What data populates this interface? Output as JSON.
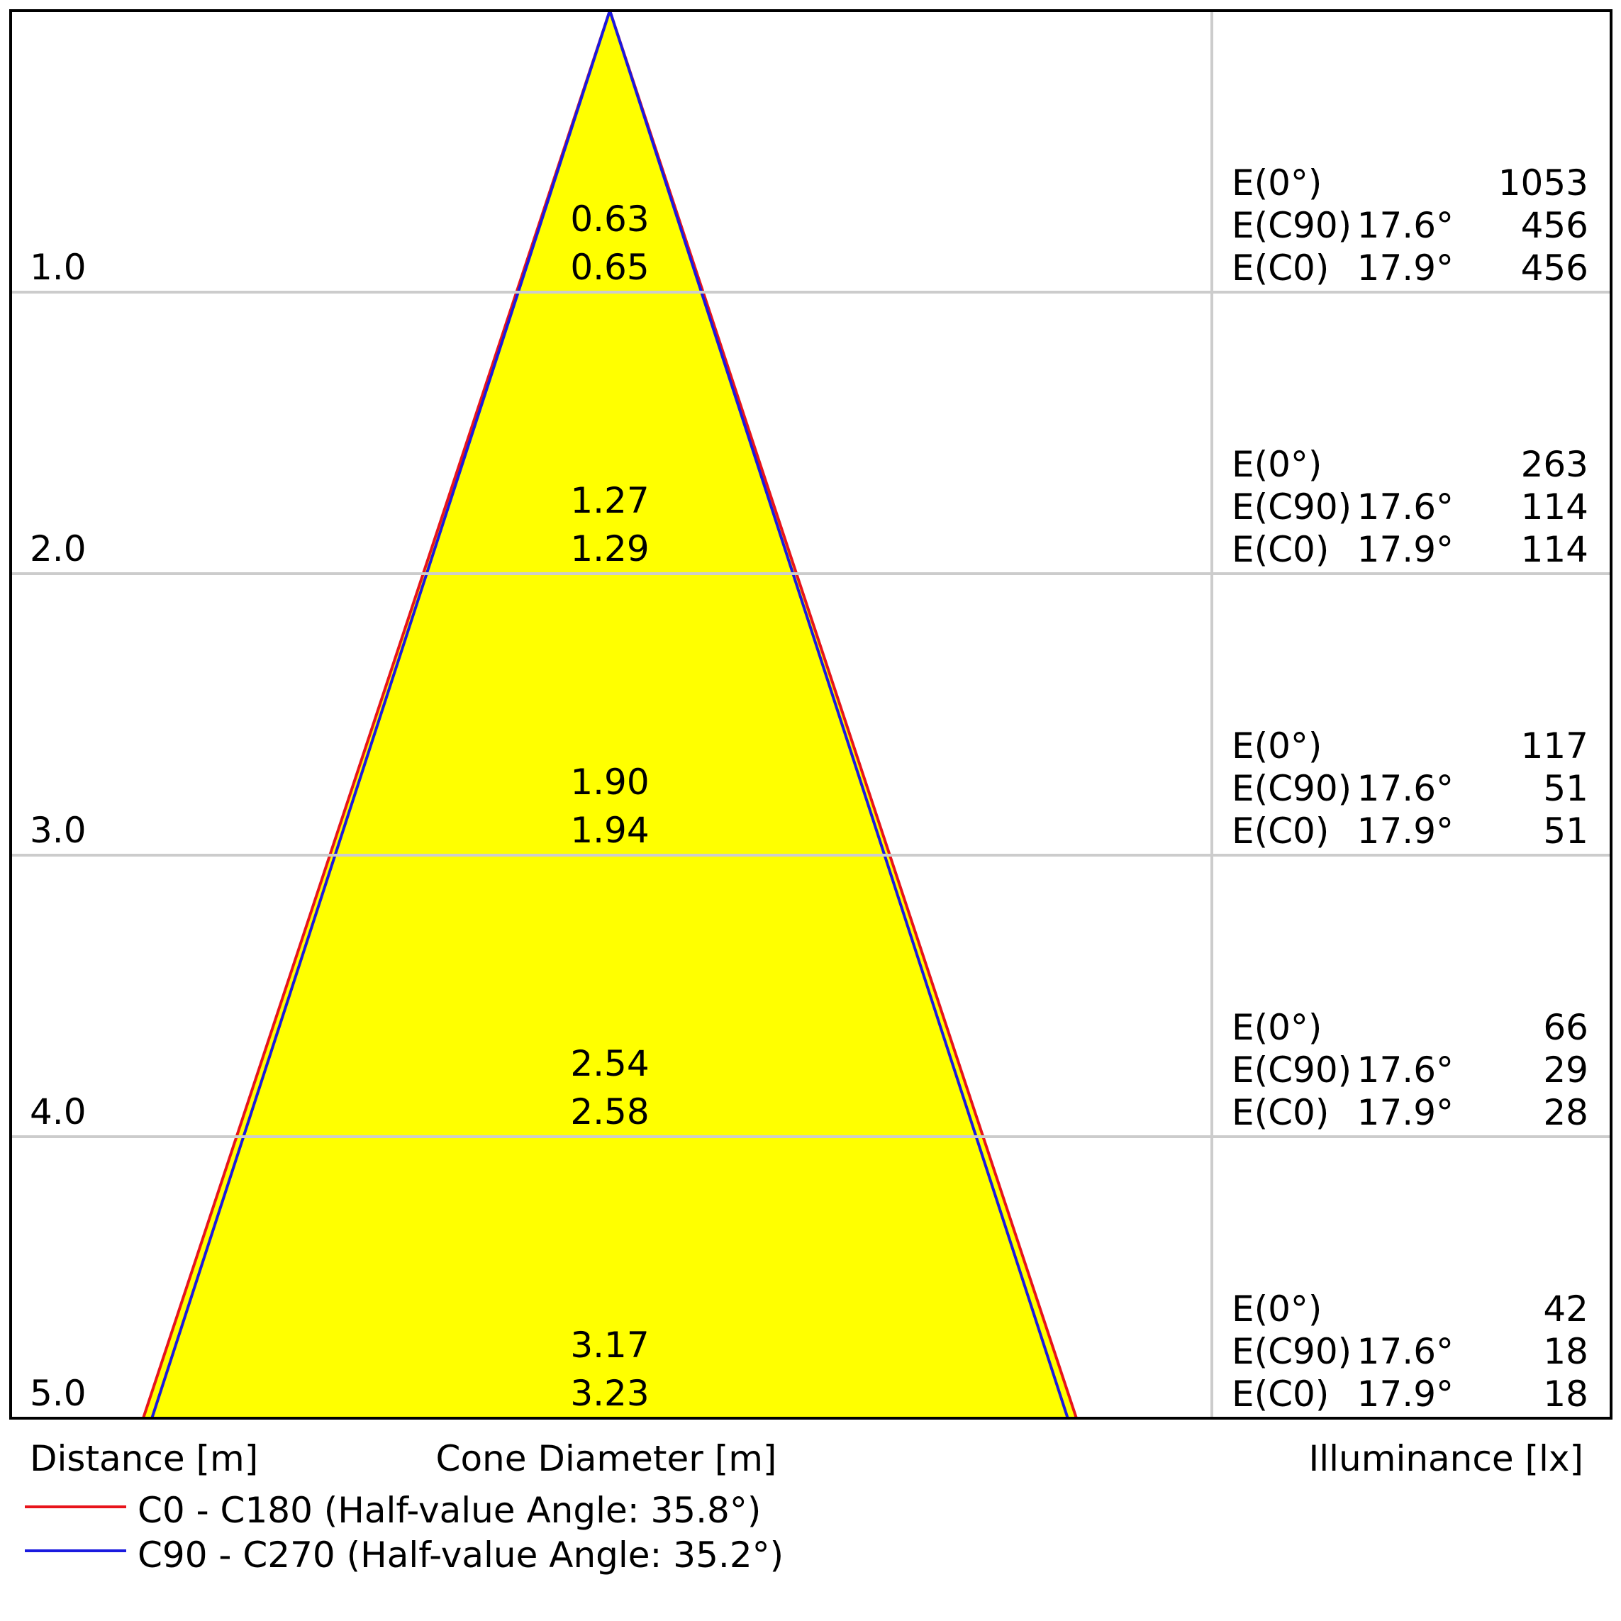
{
  "chart_data": {
    "type": "cone-diagram",
    "x_label": "Distance [m]",
    "middle_label": "Cone Diameter [m]",
    "right_label": "Illuminance [lx]",
    "rows": [
      {
        "distance": "1.0",
        "diameter_c90": "0.63",
        "diameter_c0": "0.65",
        "e0_label": "E(0°)",
        "e0": "1053",
        "ec90_label": "E(C90)",
        "ec90_angle": "17.6°",
        "ec90": "456",
        "ec0_label": "E(C0)",
        "ec0_angle": "17.9°",
        "ec0": "456"
      },
      {
        "distance": "2.0",
        "diameter_c90": "1.27",
        "diameter_c0": "1.29",
        "e0_label": "E(0°)",
        "e0": "263",
        "ec90_label": "E(C90)",
        "ec90_angle": "17.6°",
        "ec90": "114",
        "ec0_label": "E(C0)",
        "ec0_angle": "17.9°",
        "ec0": "114"
      },
      {
        "distance": "3.0",
        "diameter_c90": "1.90",
        "diameter_c0": "1.94",
        "e0_label": "E(0°)",
        "e0": "117",
        "ec90_label": "E(C90)",
        "ec90_angle": "17.6°",
        "ec90": "51",
        "ec0_label": "E(C0)",
        "ec0_angle": "17.9°",
        "ec0": "51"
      },
      {
        "distance": "4.0",
        "diameter_c90": "2.54",
        "diameter_c0": "2.58",
        "e0_label": "E(0°)",
        "e0": "66",
        "ec90_label": "E(C90)",
        "ec90_angle": "17.6°",
        "ec90": "29",
        "ec0_label": "E(C0)",
        "ec0_angle": "17.9°",
        "ec0": "28"
      },
      {
        "distance": "5.0",
        "diameter_c90": "3.17",
        "diameter_c0": "3.23",
        "e0_label": "E(0°)",
        "e0": "42",
        "ec90_label": "E(C90)",
        "ec90_angle": "17.6°",
        "ec90": "18",
        "ec0_label": "E(C0)",
        "ec0_angle": "17.9°",
        "ec0": "18"
      }
    ],
    "max_distance": 5,
    "series": [
      {
        "name": "C0 - C180 (Half-value Angle: 35.8°)",
        "half_value_angle": 35.8,
        "color": "#e8141b",
        "diameter_at_max": 3.23
      },
      {
        "name": "C90 - C270 (Half-value Angle: 35.2°)",
        "half_value_angle": 35.2,
        "color": "#1a1adf",
        "diameter_at_max": 3.17
      }
    ],
    "cone_fill": "#ffff00",
    "grid_color": "#cccccc"
  }
}
